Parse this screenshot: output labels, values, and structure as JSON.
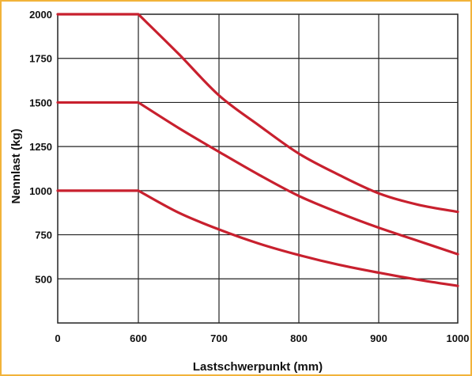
{
  "chart_data": {
    "type": "line",
    "title": "",
    "xlabel": "Lastschwerpunkt (mm)",
    "ylabel": "Nennlast (kg)",
    "x_ticks": [
      0,
      600,
      700,
      800,
      900,
      1000
    ],
    "y_ticks": [
      500,
      750,
      1000,
      1250,
      1500,
      1750,
      2000
    ],
    "y_axis_min": 250,
    "y_axis_max": 2000,
    "grid": true,
    "legend": "none",
    "series": [
      {
        "x": [
          0,
          600,
          650,
          700,
          750,
          800,
          850,
          900,
          950,
          1000
        ],
        "y": [
          2000,
          2000,
          1775,
          1540,
          1370,
          1210,
          1090,
          985,
          920,
          880
        ]
      },
      {
        "x": [
          0,
          600,
          650,
          700,
          750,
          800,
          850,
          900,
          950,
          1000
        ],
        "y": [
          1500,
          1500,
          1355,
          1220,
          1090,
          970,
          875,
          790,
          715,
          640
        ]
      },
      {
        "x": [
          0,
          600,
          650,
          700,
          750,
          800,
          850,
          900,
          950,
          1000
        ],
        "y": [
          1000,
          1000,
          875,
          780,
          700,
          635,
          580,
          535,
          495,
          460
        ]
      }
    ],
    "colors": {
      "line": "#c8202e",
      "grid": "#222222",
      "border": "#f2b33a"
    }
  }
}
